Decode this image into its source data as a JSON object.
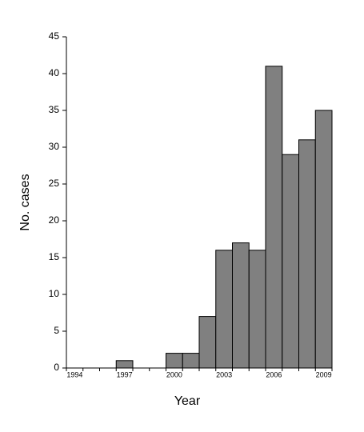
{
  "chart_data": {
    "type": "bar",
    "x_label": "Year",
    "y_label": "No. cases",
    "categories": [
      "1994",
      null,
      null,
      "1997",
      null,
      null,
      "2000",
      null,
      null,
      "2003",
      null,
      null,
      "2006",
      null,
      null,
      "2009"
    ],
    "values": [
      0,
      0,
      0,
      1,
      0,
      0,
      2,
      2,
      7,
      16,
      17,
      16,
      41,
      29,
      31,
      35
    ],
    "color": "#808080",
    "ylim": [
      0,
      45
    ],
    "yticks": [
      0,
      5,
      10,
      15,
      20,
      25,
      30,
      35,
      40,
      45
    ],
    "grid": false
  }
}
